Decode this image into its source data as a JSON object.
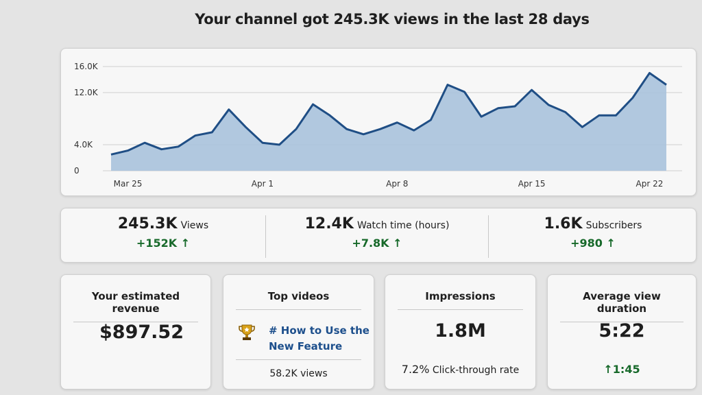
{
  "title": "Your channel got 245.3K views in the last 28 days",
  "chart_data": {
    "type": "area",
    "categories": [
      null,
      "Mar 25",
      null,
      null,
      null,
      null,
      null,
      null,
      null,
      "Apr 1",
      null,
      null,
      null,
      null,
      null,
      null,
      null,
      "Apr 8",
      null,
      null,
      null,
      null,
      null,
      null,
      null,
      "Apr 15",
      null,
      null,
      null,
      null,
      null,
      null,
      "Apr 22",
      null
    ],
    "values": [
      2500,
      3100,
      4300,
      3300,
      3700,
      5400,
      5900,
      9400,
      6700,
      4300,
      4000,
      6400,
      10200,
      8500,
      6400,
      5600,
      6400,
      7400,
      6200,
      7800,
      13200,
      12100,
      8300,
      9600,
      9900,
      12400,
      10100,
      9000,
      6700,
      8500,
      8500,
      11200,
      15000,
      13200
    ],
    "color": "#1f4e85",
    "fill": "#a9c2dc",
    "ylim": [
      0,
      16000
    ],
    "yticks": [
      0,
      {
        "value": 4000,
        "label": "4.0K"
      },
      {
        "value": 12000,
        "label": "12.0K"
      },
      {
        "value": 16000,
        "label": "16.0K"
      }
    ],
    "grid": true
  },
  "stats": [
    {
      "value": "245.3K",
      "label": "Views",
      "delta": "+152K"
    },
    {
      "value": "12.4K",
      "label": "Watch time (hours)",
      "delta": "+7.8K"
    },
    {
      "value": "1.6K",
      "label": "Subscribers",
      "delta": "+980"
    }
  ],
  "cards": {
    "revenue": {
      "title": "Your estimated revenue",
      "value": "$897.52"
    },
    "top_videos": {
      "title": "Top videos",
      "video": "# How to Use the New Feature",
      "views": "58.2K views"
    },
    "impressions": {
      "title": "Impressions",
      "value": "1.8M",
      "ctr": "7.2%",
      "ctr_label": "Click-through rate"
    },
    "duration": {
      "title": "Average view duration",
      "value": "5:22",
      "delta": "1:45"
    }
  }
}
